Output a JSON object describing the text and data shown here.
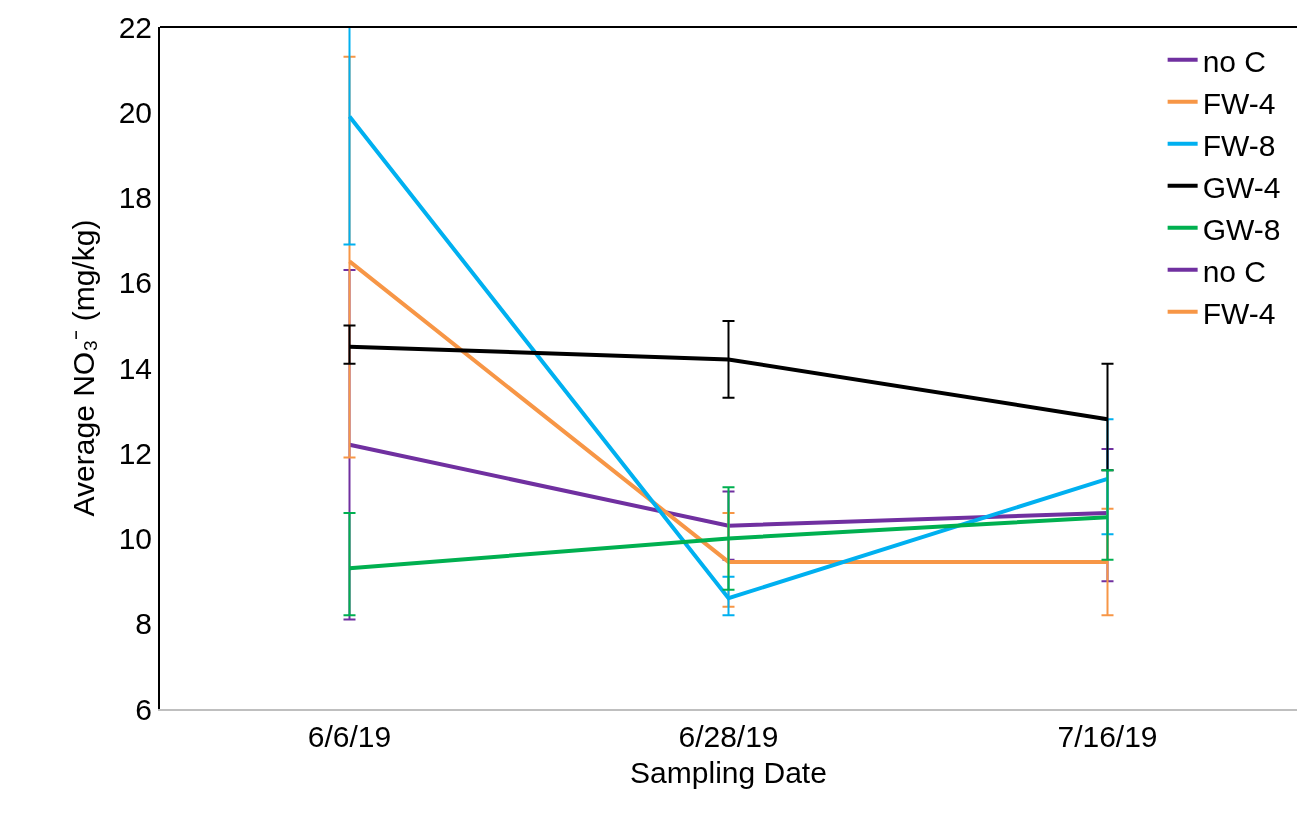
{
  "chart_data": {
    "type": "line",
    "xlabel": "Sampling Date",
    "ylabel": "Average NO₃⁻ (mg/kg)",
    "categories": [
      "6/6/19",
      "6/28/19",
      "7/16/19"
    ],
    "ylim": [
      6,
      22
    ],
    "yticks": [
      6,
      8,
      10,
      12,
      14,
      16,
      18,
      20,
      22
    ],
    "legend": "top right",
    "marker": "none",
    "line_style": "solid",
    "series": [
      {
        "name": "no C",
        "color": "#7030a0",
        "values": [
          12.2,
          10.3,
          10.6
        ],
        "errors": [
          [
            8.1,
            16.3
          ],
          [
            9.5,
            11.1
          ],
          [
            9.0,
            12.1
          ]
        ]
      },
      {
        "name": "FW-4",
        "color": "#f79646",
        "values": [
          16.5,
          9.45,
          9.45
        ],
        "errors": [
          [
            11.9,
            21.3
          ],
          [
            8.4,
            10.6
          ],
          [
            8.2,
            10.7
          ]
        ]
      },
      {
        "name": "FW-8",
        "color": "#00b0f0",
        "values": [
          19.9,
          8.6,
          11.4
        ],
        "errors": [
          [
            16.9,
            22
          ],
          [
            8.2,
            9.1
          ],
          [
            10.1,
            12.8
          ]
        ]
      },
      {
        "name": "GW-4",
        "color": "#000000",
        "values": [
          14.5,
          14.2,
          12.8
        ],
        "errors": [
          [
            14.1,
            15.0
          ],
          [
            13.3,
            15.1
          ],
          [
            11.6,
            14.1
          ]
        ]
      },
      {
        "name": "GW-8",
        "color": "#00b050",
        "values": [
          9.3,
          10.0,
          10.5
        ],
        "errors": [
          [
            8.2,
            10.6
          ],
          [
            8.8,
            11.2
          ],
          [
            9.5,
            11.6
          ]
        ]
      },
      {
        "name": "no C",
        "color": "#7030a0",
        "values": [
          null,
          null,
          null
        ]
      },
      {
        "name": "FW-4",
        "color": "#f79646",
        "values": [
          null,
          null,
          null
        ]
      }
    ]
  }
}
